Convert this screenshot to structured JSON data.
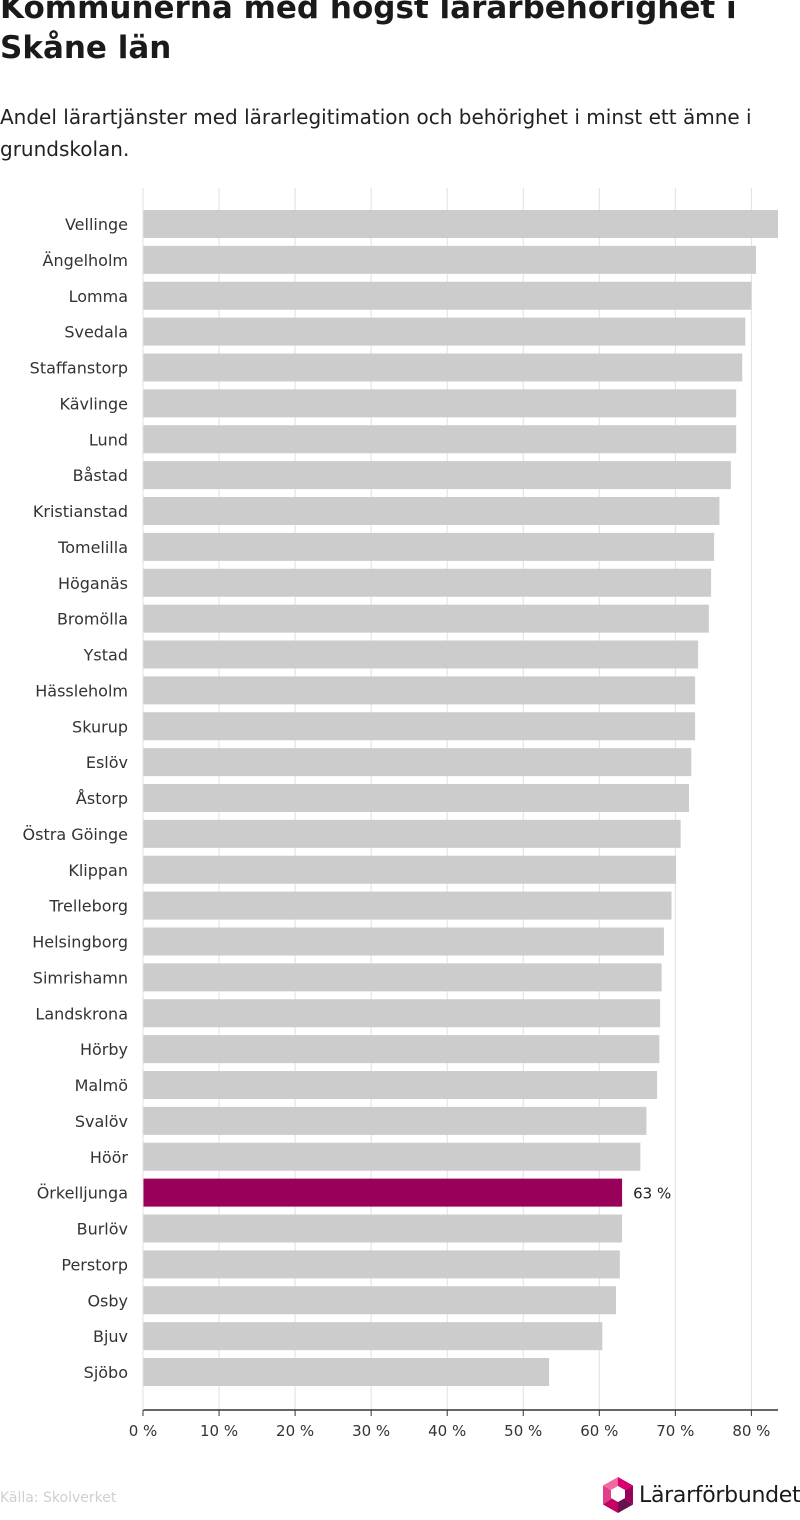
{
  "header": {
    "title": "Kommunerna med högst lärarbehörighet i Skåne län",
    "subtitle": "Andel lärartjänster med lärarlegitimation och behörighet i minst ett ämne i grundskolan."
  },
  "footer": {
    "source": "Källa: Skolverket",
    "logo_text": "Lärarförbundet"
  },
  "colors": {
    "bar": "#cccccc",
    "highlight": "#99005a",
    "axis": "#333333",
    "grid": "#e0e0e0"
  },
  "chart_data": {
    "type": "bar",
    "orientation": "horizontal",
    "title": "Kommunerna med högst lärarbehörighet i Skåne län",
    "subtitle": "Andel lärartjänster med lärarlegitimation och behörighet i minst ett ämne i grundskolan.",
    "categories": [
      "Vellinge",
      "Ängelholm",
      "Lomma",
      "Svedala",
      "Staffanstorp",
      "Kävlinge",
      "Lund",
      "Båstad",
      "Kristianstad",
      "Tomelilla",
      "Höganäs",
      "Bromölla",
      "Ystad",
      "Hässleholm",
      "Skurup",
      "Eslöv",
      "Åstorp",
      "Östra Göinge",
      "Klippan",
      "Trelleborg",
      "Helsingborg",
      "Simrishamn",
      "Landskrona",
      "Hörby",
      "Malmö",
      "Svalöv",
      "Höör",
      "Örkelljunga",
      "Burlöv",
      "Perstorp",
      "Osby",
      "Bjuv",
      "Sjöbo"
    ],
    "values": [
      83.5,
      80.6,
      80.0,
      79.2,
      78.8,
      78.0,
      78.0,
      77.3,
      75.8,
      75.1,
      74.7,
      74.4,
      73.0,
      72.6,
      72.6,
      72.1,
      71.8,
      70.7,
      70.1,
      69.5,
      68.5,
      68.2,
      68.0,
      67.9,
      67.6,
      66.2,
      65.4,
      63.0,
      63.0,
      62.7,
      62.2,
      60.4,
      53.4
    ],
    "highlight": "Örkelljunga",
    "data_labels": [
      {
        "category": "Örkelljunga",
        "text": "63 %"
      }
    ],
    "xlim": [
      0,
      83.5
    ],
    "xticks": [
      0,
      10,
      20,
      30,
      40,
      50,
      60,
      70,
      80
    ],
    "xtick_labels": [
      "0 %",
      "10 %",
      "20 %",
      "30 %",
      "40 %",
      "50 %",
      "60 %",
      "70 %",
      "80 %"
    ],
    "xlabel": "",
    "ylabel": "",
    "grid": "vertical",
    "legend": "none"
  }
}
